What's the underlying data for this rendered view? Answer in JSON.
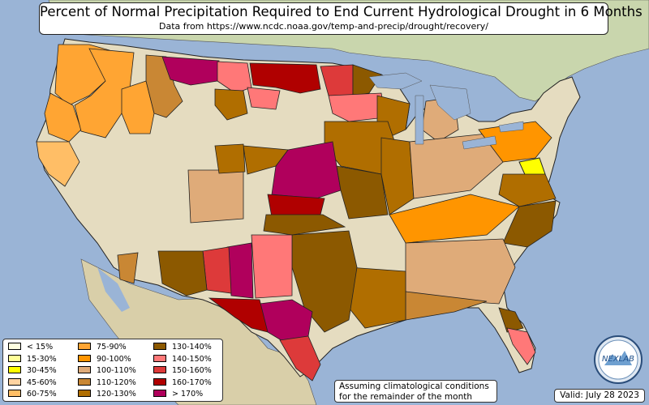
{
  "title": "Percent of Normal Precipitation Required to End Current Hydrological Drought in 6 Months",
  "subtitle": "Data from https://www.ncdc.noaa.gov/temp-and-precip/drought/recovery/",
  "note": {
    "line1": "Assuming climatological conditions",
    "line2": "for the remainder of the month"
  },
  "valid": "Valid: July 28 2023",
  "logo_text": "NEXLAB",
  "colors": {
    "ocean": "#9ab4d6",
    "land": "#e5dcc0",
    "land_green": "#bcd4a2",
    "border": "#000000"
  },
  "legend": [
    {
      "label": "< 15%",
      "color": "#ffffe0"
    },
    {
      "label": "15-30%",
      "color": "#ffff99"
    },
    {
      "label": "30-45%",
      "color": "#ffff00"
    },
    {
      "label": "45-60%",
      "color": "#ffd3a0"
    },
    {
      "label": "60-75%",
      "color": "#ffbe66"
    },
    {
      "label": "75-90%",
      "color": "#ffa533"
    },
    {
      "label": "90-100%",
      "color": "#ff9500"
    },
    {
      "label": "100-110%",
      "color": "#dfab79"
    },
    {
      "label": "110-120%",
      "color": "#c98734"
    },
    {
      "label": "120-130%",
      "color": "#b06e00"
    },
    {
      "label": "130-140%",
      "color": "#8c5900"
    },
    {
      "label": "140-150%",
      "color": "#ff7878"
    },
    {
      "label": "150-160%",
      "color": "#dd3a3a"
    },
    {
      "label": "160-170%",
      "color": "#b00000"
    },
    {
      "label": "> 170%",
      "color": "#b0005c"
    }
  ],
  "regions": [
    {
      "name": "washington-coast",
      "class": "75-90%"
    },
    {
      "name": "oregon-california-coast",
      "class": "75-90%"
    },
    {
      "name": "northern-california",
      "class": "60-75%"
    },
    {
      "name": "oregon-interior",
      "class": "75-90%"
    },
    {
      "name": "idaho-west",
      "class": "75-90%"
    },
    {
      "name": "idaho-east",
      "class": "110-120%"
    },
    {
      "name": "montana-west",
      "class": "110-120%"
    },
    {
      "name": "montana-north",
      "class": "> 170%"
    },
    {
      "name": "montana-east",
      "class": "140-150%"
    },
    {
      "name": "montana-central",
      "class": "120-130%"
    },
    {
      "name": "north-dakota",
      "class": "160-170%"
    },
    {
      "name": "dakota-minnesota-border",
      "class": "150-160%"
    },
    {
      "name": "minnesota-north",
      "class": "120-130%"
    },
    {
      "name": "minnesota-central",
      "class": "140-150%"
    },
    {
      "name": "upper-midwest",
      "class": "120-130%"
    },
    {
      "name": "wisconsin",
      "class": "110-120%"
    },
    {
      "name": "great-plains-core",
      "class": "> 170%"
    },
    {
      "name": "kansas",
      "class": "130-140%"
    },
    {
      "name": "oklahoma-central",
      "class": "160-170%"
    },
    {
      "name": "oklahoma-south",
      "class": "120-130%"
    },
    {
      "name": "new-mexico-west",
      "class": "150-160%"
    },
    {
      "name": "new-mexico-east",
      "class": "140-150%"
    },
    {
      "name": "new-mexico-central",
      "class": "> 170%"
    },
    {
      "name": "west-texas",
      "class": "160-170%"
    },
    {
      "name": "central-texas",
      "class": "> 170%"
    },
    {
      "name": "south-texas",
      "class": "150-160%"
    },
    {
      "name": "east-texas",
      "class": "130-140%"
    },
    {
      "name": "louisiana",
      "class": "120-130%"
    },
    {
      "name": "arizona-east",
      "class": "120-130%"
    },
    {
      "name": "colorado",
      "class": "100-110%"
    },
    {
      "name": "missouri",
      "class": "130-140%"
    },
    {
      "name": "illinois",
      "class": "120-130%"
    },
    {
      "name": "indiana-ohio",
      "class": "100-110%"
    },
    {
      "name": "kentucky-tennessee",
      "class": "90-100%"
    },
    {
      "name": "southeast",
      "class": "100-110%"
    },
    {
      "name": "carolinas",
      "class": "130-140%"
    },
    {
      "name": "virginia",
      "class": "120-130%"
    },
    {
      "name": "maryland-delaware",
      "class": "30-45%"
    },
    {
      "name": "pennsylvania-ny",
      "class": "90-100%"
    },
    {
      "name": "michigan",
      "class": "100-110%"
    },
    {
      "name": "florida-north",
      "class": "130-140%"
    },
    {
      "name": "florida-south",
      "class": "140-150%"
    },
    {
      "name": "gulf-coast",
      "class": "110-120%"
    }
  ]
}
